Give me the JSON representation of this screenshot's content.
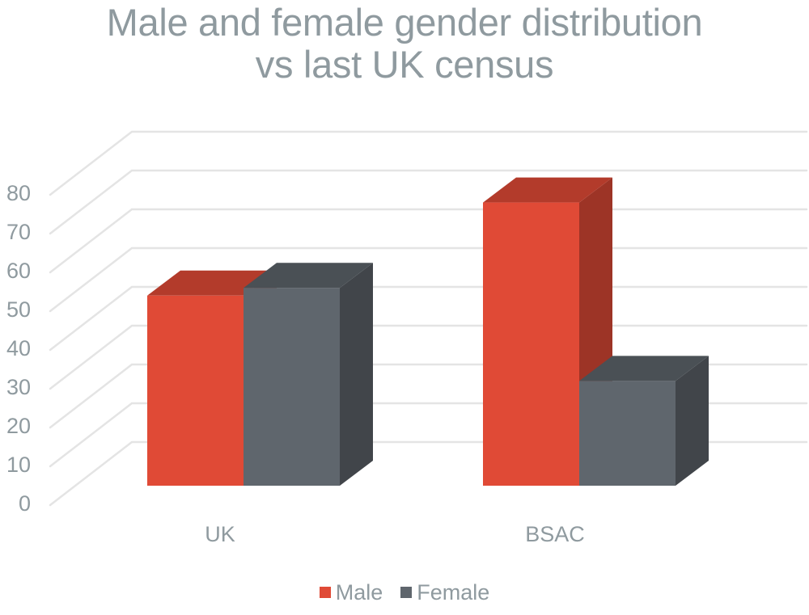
{
  "title": {
    "line1": "Male and female gender distribution",
    "line2": "vs last UK census"
  },
  "legend": [
    {
      "label": "Male",
      "color": "#e04a36"
    },
    {
      "label": "Female",
      "color": "#5f666d"
    }
  ],
  "y_ticks": [
    "80",
    "70",
    "60",
    "50",
    "40",
    "30",
    "20",
    "10",
    "0"
  ],
  "categories": [
    "UK",
    "BSAC"
  ],
  "chart_data": {
    "type": "bar",
    "subtype": "3d-clustered-column",
    "title": "Male and female gender distribution vs last UK census",
    "categories": [
      "UK",
      "BSAC"
    ],
    "series": [
      {
        "name": "Male",
        "values": [
          49,
          73
        ],
        "color": "#e04a36"
      },
      {
        "name": "Female",
        "values": [
          51,
          27
        ],
        "color": "#5f666d"
      }
    ],
    "xlabel": "",
    "ylabel": "",
    "ylim": [
      0,
      90
    ],
    "yticks": [
      0,
      10,
      20,
      30,
      40,
      50,
      60,
      70,
      80
    ],
    "grid": true,
    "legend_position": "bottom"
  }
}
